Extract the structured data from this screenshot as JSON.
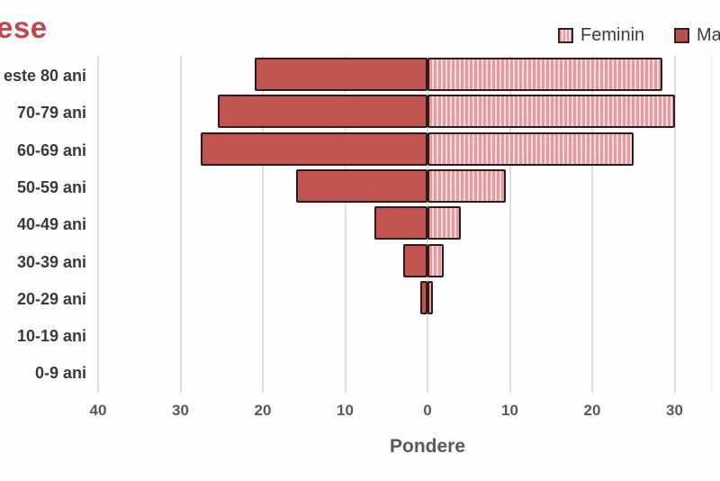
{
  "title": {
    "visible_text": "ese",
    "color": "#c4454b"
  },
  "legend": {
    "position": "top-right",
    "items": [
      {
        "label": "Feminin",
        "swatch": "striped-pink"
      },
      {
        "label": "Ma",
        "swatch": "solid-red",
        "note_visible": "clipped at right edge"
      }
    ]
  },
  "chart_data": {
    "type": "bar",
    "subtype": "population-pyramid",
    "orientation": "horizontal",
    "title_visible": "ese",
    "xlabel": "Pondere",
    "ylabel": "",
    "categories": [
      "este 80 ani",
      "70-79 ani",
      "60-69 ani",
      "50-59 ani",
      "40-49 ani",
      "30-39 ani",
      "20-29 ani",
      "10-19 ani",
      "0-9 ani"
    ],
    "series": [
      {
        "name": "Feminin",
        "side": "right",
        "values": [
          28.5,
          30,
          25,
          9.5,
          4,
          2,
          0.7,
          0,
          0
        ]
      },
      {
        "name": "Masculin",
        "side": "left",
        "values": [
          21,
          25.5,
          27.5,
          16,
          6.5,
          3,
          0.9,
          0,
          0
        ]
      }
    ],
    "x_tick_labels": [
      "40",
      "30",
      "20",
      "10",
      "0",
      "10",
      "20",
      "30"
    ],
    "x_tick_values": [
      -40,
      -30,
      -20,
      -10,
      0,
      10,
      20,
      30
    ],
    "xlim": [
      -40,
      35
    ],
    "grid": true,
    "legend_position": "top-right",
    "colors": {
      "masculin_fill": "#c1544f",
      "feminin_fill": "#e69aa0",
      "feminin_stripe": "#f6dbdc",
      "bar_border": "#2e1b1a",
      "gridline": "#dedede",
      "axis_text": "#595959",
      "category_text": "#3a3a3a",
      "legend_text": "#3d3d3d",
      "title_text": "#c4454b",
      "background": "#fdfdfd"
    }
  }
}
